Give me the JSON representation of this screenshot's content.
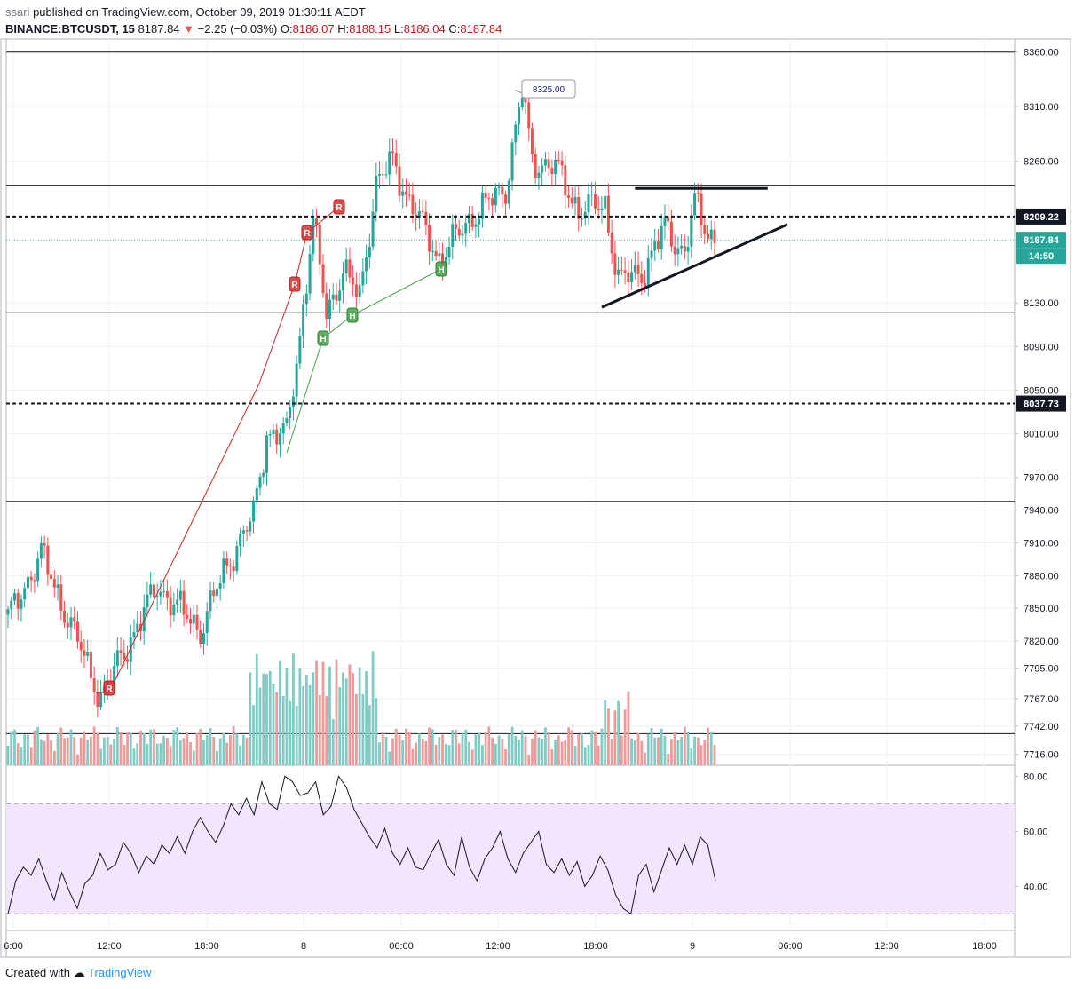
{
  "header": {
    "publisher": "ssari",
    "published_text": "published on",
    "source": "TradingView.com,",
    "datetime": "October 09, 2019 01:30:11 AEDT",
    "symbol": "BINANCE:BTCUSDT, 15",
    "last": "8187.84",
    "arrow": "▼",
    "change": "−2.25 (−0.03%)",
    "o_label": "O:",
    "o_value": "8186.07",
    "h_label": "H:",
    "h_value": "8188.15",
    "l_label": "L:",
    "l_value": "8186.04",
    "c_label": "C:",
    "c_value": "8187.84"
  },
  "footer": {
    "created_with": "Created with",
    "brand": "TradingView"
  },
  "colors": {
    "up": "#26a69a",
    "down": "#ef5350",
    "vol_up": "#80cbc4",
    "vol_down": "#ef9a9a",
    "rsi_line": "#131722",
    "rsi_band": "#f3e5fc",
    "grid": "#eef0f3"
  },
  "chart_data": [
    {
      "type": "candlestick",
      "title": "BINANCE:BTCUSDT, 15",
      "y_ticks": [
        "8360.00",
        "8310.00",
        "8260.00",
        "8130.00",
        "8090.00",
        "8050.00",
        "8010.00",
        "7970.00",
        "7940.00",
        "7910.00",
        "7880.00",
        "7850.00",
        "7820.00",
        "7795.00",
        "7767.00",
        "7742.00",
        "7716.00"
      ],
      "x_ticks": [
        "6:00",
        "12:00",
        "18:00",
        "8",
        "06:00",
        "12:00",
        "18:00",
        "9",
        "06:00",
        "12:00",
        "18:00"
      ],
      "ylim": [
        7706,
        8372
      ],
      "price_tags": [
        {
          "label": "8209.22",
          "value": 8209.22,
          "style": "dashed"
        },
        {
          "label": "8187.84",
          "value": 8187.84,
          "style": "last"
        },
        {
          "label": "14:50",
          "value": 8187.84,
          "style": "countdown"
        },
        {
          "label": "8037.73",
          "value": 8037.73,
          "style": "dashed"
        }
      ],
      "horizontal_levels": [
        8360,
        8238,
        8121,
        7948,
        7735
      ],
      "callout": {
        "label": "8325.00",
        "value": 8325
      },
      "annotations": [
        {
          "label": "R",
          "kind": "resistance"
        },
        {
          "label": "R",
          "kind": "resistance"
        },
        {
          "label": "R",
          "kind": "resistance"
        },
        {
          "label": "R",
          "kind": "resistance"
        },
        {
          "label": "H",
          "kind": "higher-low"
        },
        {
          "label": "H",
          "kind": "higher-low"
        },
        {
          "label": "H",
          "kind": "higher-low"
        }
      ],
      "trendlines": [
        {
          "name": "flat-resistance",
          "from": [
            189,
            8235
          ],
          "to": [
            229,
            8235
          ]
        },
        {
          "name": "rising-support",
          "from": [
            179,
            8126
          ],
          "to": [
            235,
            8202
          ]
        }
      ],
      "candle_count": 214,
      "key_prices": [
        {
          "bar": 0,
          "price": 7840
        },
        {
          "bar": 10,
          "price": 7900
        },
        {
          "bar": 28,
          "price": 7768
        },
        {
          "bar": 45,
          "price": 7870
        },
        {
          "bar": 58,
          "price": 7830
        },
        {
          "bar": 66,
          "price": 7890
        },
        {
          "bar": 74,
          "price": 7935
        },
        {
          "bar": 78,
          "price": 8010
        },
        {
          "bar": 84,
          "price": 8010
        },
        {
          "bar": 88,
          "price": 8100
        },
        {
          "bar": 92,
          "price": 8205
        },
        {
          "bar": 96,
          "price": 8120
        },
        {
          "bar": 101,
          "price": 8160
        },
        {
          "bar": 106,
          "price": 8135
        },
        {
          "bar": 111,
          "price": 8240
        },
        {
          "bar": 116,
          "price": 8260
        },
        {
          "bar": 120,
          "price": 8230
        },
        {
          "bar": 130,
          "price": 8170
        },
        {
          "bar": 140,
          "price": 8210
        },
        {
          "bar": 150,
          "price": 8235
        },
        {
          "bar": 155,
          "price": 8325
        },
        {
          "bar": 158,
          "price": 8260
        },
        {
          "bar": 165,
          "price": 8255
        },
        {
          "bar": 172,
          "price": 8215
        },
        {
          "bar": 180,
          "price": 8220
        },
        {
          "bar": 184,
          "price": 8150
        },
        {
          "bar": 192,
          "price": 8160
        },
        {
          "bar": 198,
          "price": 8200
        },
        {
          "bar": 204,
          "price": 8175
        },
        {
          "bar": 207,
          "price": 8222
        },
        {
          "bar": 210,
          "price": 8200
        },
        {
          "bar": 213,
          "price": 8188
        }
      ]
    },
    {
      "type": "line",
      "title": "RSI",
      "y_ticks": [
        "80.00",
        "60.00",
        "40.00"
      ],
      "ylim": [
        24,
        84
      ],
      "band": [
        30,
        70
      ],
      "series": [
        {
          "values": [
            30,
            42,
            47,
            44,
            50,
            42,
            35,
            45,
            38,
            32,
            41,
            44,
            52,
            46,
            48,
            56,
            52,
            45,
            51,
            48,
            55,
            52,
            58,
            52,
            60,
            65,
            60,
            56,
            62,
            70,
            66,
            72,
            66,
            78,
            70,
            68,
            80,
            78,
            73,
            74,
            78,
            66,
            69,
            80,
            76,
            68,
            63,
            58,
            54,
            61,
            52,
            48,
            54,
            47,
            46,
            52,
            57,
            48,
            44,
            58,
            47,
            42,
            50,
            54,
            60,
            50,
            45,
            52,
            56,
            60,
            48,
            45,
            50,
            44,
            49,
            40,
            44,
            51,
            46,
            37,
            32,
            30,
            44,
            48,
            38,
            46,
            54,
            48,
            55,
            48,
            58,
            55,
            42
          ]
        }
      ]
    }
  ]
}
